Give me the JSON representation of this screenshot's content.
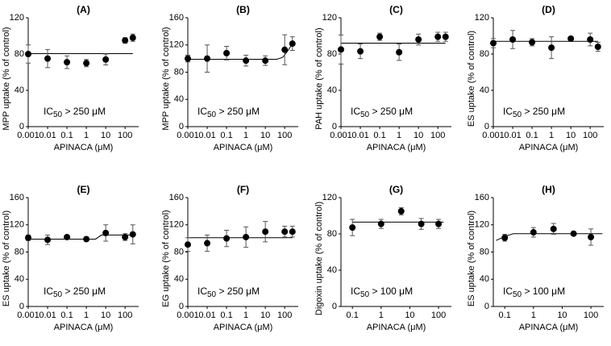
{
  "chart_data": [
    {
      "type": "scatter",
      "title": "(A)",
      "xlabel": "APINACA (μM)",
      "ylabel": "MPP uptake (% of control)",
      "log_x": true,
      "xlim": [
        0.001,
        500
      ],
      "xticks": [
        0.001,
        0.01,
        0.1,
        1,
        10,
        100
      ],
      "ylim": [
        0,
        120
      ],
      "yticks": [
        0,
        40,
        80,
        120
      ],
      "series": [
        {
          "color": "#000000",
          "x": [
            0.001,
            0.01,
            0.1,
            1,
            10,
            100,
            250
          ],
          "values": [
            80,
            75,
            71,
            70,
            74,
            95,
            98
          ],
          "errors": [
            10,
            10,
            7,
            4,
            6,
            3,
            4
          ]
        }
      ],
      "fit": {
        "x": [
          0.001,
          250
        ],
        "values": [
          80.5,
          80.5
        ]
      },
      "annotation": {
        "prefix": "IC",
        "sub": "50",
        "rest": " > 250 μM"
      }
    },
    {
      "type": "scatter",
      "title": "(B)",
      "xlabel": "APINACA (μM)",
      "ylabel": "MPP uptake (% of control)",
      "log_x": true,
      "xlim": [
        0.001,
        500
      ],
      "xticks": [
        0.001,
        0.01,
        0.1,
        1,
        10,
        100
      ],
      "ylim": [
        0,
        160
      ],
      "yticks": [
        0,
        40,
        80,
        120,
        160
      ],
      "series": [
        {
          "color": "#000000",
          "x": [
            0.001,
            0.01,
            0.1,
            1,
            10,
            100,
            250
          ],
          "values": [
            100,
            100,
            108,
            97,
            97,
            113,
            122
          ],
          "errors": [
            5,
            20,
            10,
            8,
            7,
            22,
            10
          ]
        }
      ],
      "fit": {
        "x": [
          0.001,
          40,
          80,
          150,
          250
        ],
        "values": [
          99,
          99,
          102,
          112,
          122
        ]
      },
      "annotation": {
        "prefix": "IC",
        "sub": "50",
        "rest": " > 250 μM"
      }
    },
    {
      "type": "scatter",
      "title": "(C)",
      "xlabel": "APINACA (μM)",
      "ylabel": "PAH uptake (% of control)",
      "log_x": true,
      "xlim": [
        0.001,
        500
      ],
      "xticks": [
        0.001,
        0.01,
        0.1,
        1,
        10,
        100
      ],
      "ylim": [
        0,
        120
      ],
      "yticks": [
        0,
        40,
        80,
        120
      ],
      "series": [
        {
          "color": "#000000",
          "x": [
            0.001,
            0.01,
            0.1,
            1,
            10,
            100,
            250
          ],
          "values": [
            85,
            83,
            99,
            82,
            96,
            99,
            99
          ],
          "errors": [
            16,
            8,
            4,
            9,
            6,
            5,
            5
          ]
        }
      ],
      "fit": {
        "x": [
          0.001,
          250
        ],
        "values": [
          92,
          92
        ]
      },
      "annotation": {
        "prefix": "IC",
        "sub": "50",
        "rest": " > 250 μM"
      }
    },
    {
      "type": "scatter",
      "title": "(D)",
      "xlabel": "APINACA (μM)",
      "ylabel": "ES uptake (% of control)",
      "log_x": true,
      "xlim": [
        0.001,
        500
      ],
      "xticks": [
        0.001,
        0.01,
        0.1,
        1,
        10,
        100
      ],
      "ylim": [
        0,
        120
      ],
      "yticks": [
        0,
        40,
        80,
        120
      ],
      "series": [
        {
          "color": "#000000",
          "x": [
            0.001,
            0.01,
            0.1,
            1,
            10,
            100,
            250
          ],
          "values": [
            92,
            96,
            93,
            87,
            97,
            96,
            88
          ],
          "errors": [
            5,
            10,
            4,
            12,
            2,
            7,
            5
          ]
        }
      ],
      "fit": {
        "x": [
          0.001,
          250
        ],
        "values": [
          94,
          94
        ]
      },
      "annotation": {
        "prefix": "IC",
        "sub": "50",
        "rest": " > 250 μM"
      }
    },
    {
      "type": "scatter",
      "title": "(E)",
      "xlabel": "APINACA (μM)",
      "ylabel": "ES uptake (% of control)",
      "log_x": true,
      "xlim": [
        0.001,
        500
      ],
      "xticks": [
        0.001,
        0.01,
        0.1,
        1,
        10,
        100
      ],
      "ylim": [
        0,
        160
      ],
      "yticks": [
        0,
        40,
        80,
        120,
        160
      ],
      "series": [
        {
          "color": "#000000",
          "x": [
            0.001,
            0.01,
            0.1,
            1,
            10,
            100,
            250
          ],
          "values": [
            101,
            98,
            102,
            99,
            108,
            102,
            106
          ],
          "errors": [
            4,
            7,
            2,
            3,
            12,
            5,
            14
          ]
        }
      ],
      "fit": {
        "x": [
          0.001,
          3,
          6,
          250
        ],
        "values": [
          99,
          99,
          105,
          105
        ]
      },
      "annotation": {
        "prefix": "IC",
        "sub": "50",
        "rest": " > 250 μM"
      }
    },
    {
      "type": "scatter",
      "title": "(F)",
      "xlabel": "APINACA (μM)",
      "ylabel": "EG uptake (% of control)",
      "log_x": true,
      "xlim": [
        0.001,
        500
      ],
      "xticks": [
        0.001,
        0.01,
        0.1,
        1,
        10,
        100
      ],
      "ylim": [
        0,
        160
      ],
      "yticks": [
        0,
        40,
        80,
        120,
        160
      ],
      "series": [
        {
          "color": "#000000",
          "x": [
            0.001,
            0.01,
            0.1,
            1,
            10,
            100,
            250
          ],
          "values": [
            91,
            93,
            100,
            102,
            110,
            110,
            110
          ],
          "errors": [
            10,
            12,
            12,
            15,
            15,
            8,
            8
          ]
        }
      ],
      "fit": {
        "x": [
          0.001,
          250
        ],
        "values": [
          101,
          101
        ]
      },
      "annotation": {
        "prefix": "IC",
        "sub": "50",
        "rest": " > 250 μM"
      }
    },
    {
      "type": "scatter",
      "title": "(G)",
      "xlabel": "APINACA (μM)",
      "ylabel": "Digoxin uptake (% of control)",
      "log_x": true,
      "xlim": [
        0.04,
        280
      ],
      "xticks": [
        0.1,
        1,
        10,
        100
      ],
      "ylim": [
        0,
        120
      ],
      "yticks": [
        0,
        40,
        80,
        120
      ],
      "series": [
        {
          "color": "#000000",
          "x": [
            0.1,
            1,
            5,
            25,
            100
          ],
          "values": [
            87,
            91,
            105,
            91,
            91
          ],
          "errors": [
            9,
            5,
            4,
            6,
            5
          ]
        }
      ],
      "fit": {
        "x": [
          0.1,
          150
        ],
        "values": [
          93,
          93
        ]
      },
      "annotation": {
        "prefix": "IC",
        "sub": "50",
        "rest": " > 100 μM"
      }
    },
    {
      "type": "scatter",
      "title": "(H)",
      "xlabel": "APINACA (μM)",
      "ylabel": "ES uptake (% of control)",
      "log_x": true,
      "xlim": [
        0.04,
        280
      ],
      "xticks": [
        0.1,
        1,
        10,
        100
      ],
      "ylim": [
        0,
        160
      ],
      "yticks": [
        0,
        40,
        80,
        120,
        160
      ],
      "series": [
        {
          "color": "#000000",
          "x": [
            0.1,
            1,
            5,
            25,
            100
          ],
          "values": [
            101,
            109,
            114,
            107,
            102
          ],
          "errors": [
            5,
            7,
            8,
            2,
            12
          ]
        }
      ],
      "fit": {
        "x": [
          0.05,
          0.1,
          0.2,
          250
        ],
        "values": [
          97,
          103,
          107,
          107
        ]
      },
      "annotation": {
        "prefix": "IC",
        "sub": "50",
        "rest": " > 100 μM"
      }
    }
  ]
}
